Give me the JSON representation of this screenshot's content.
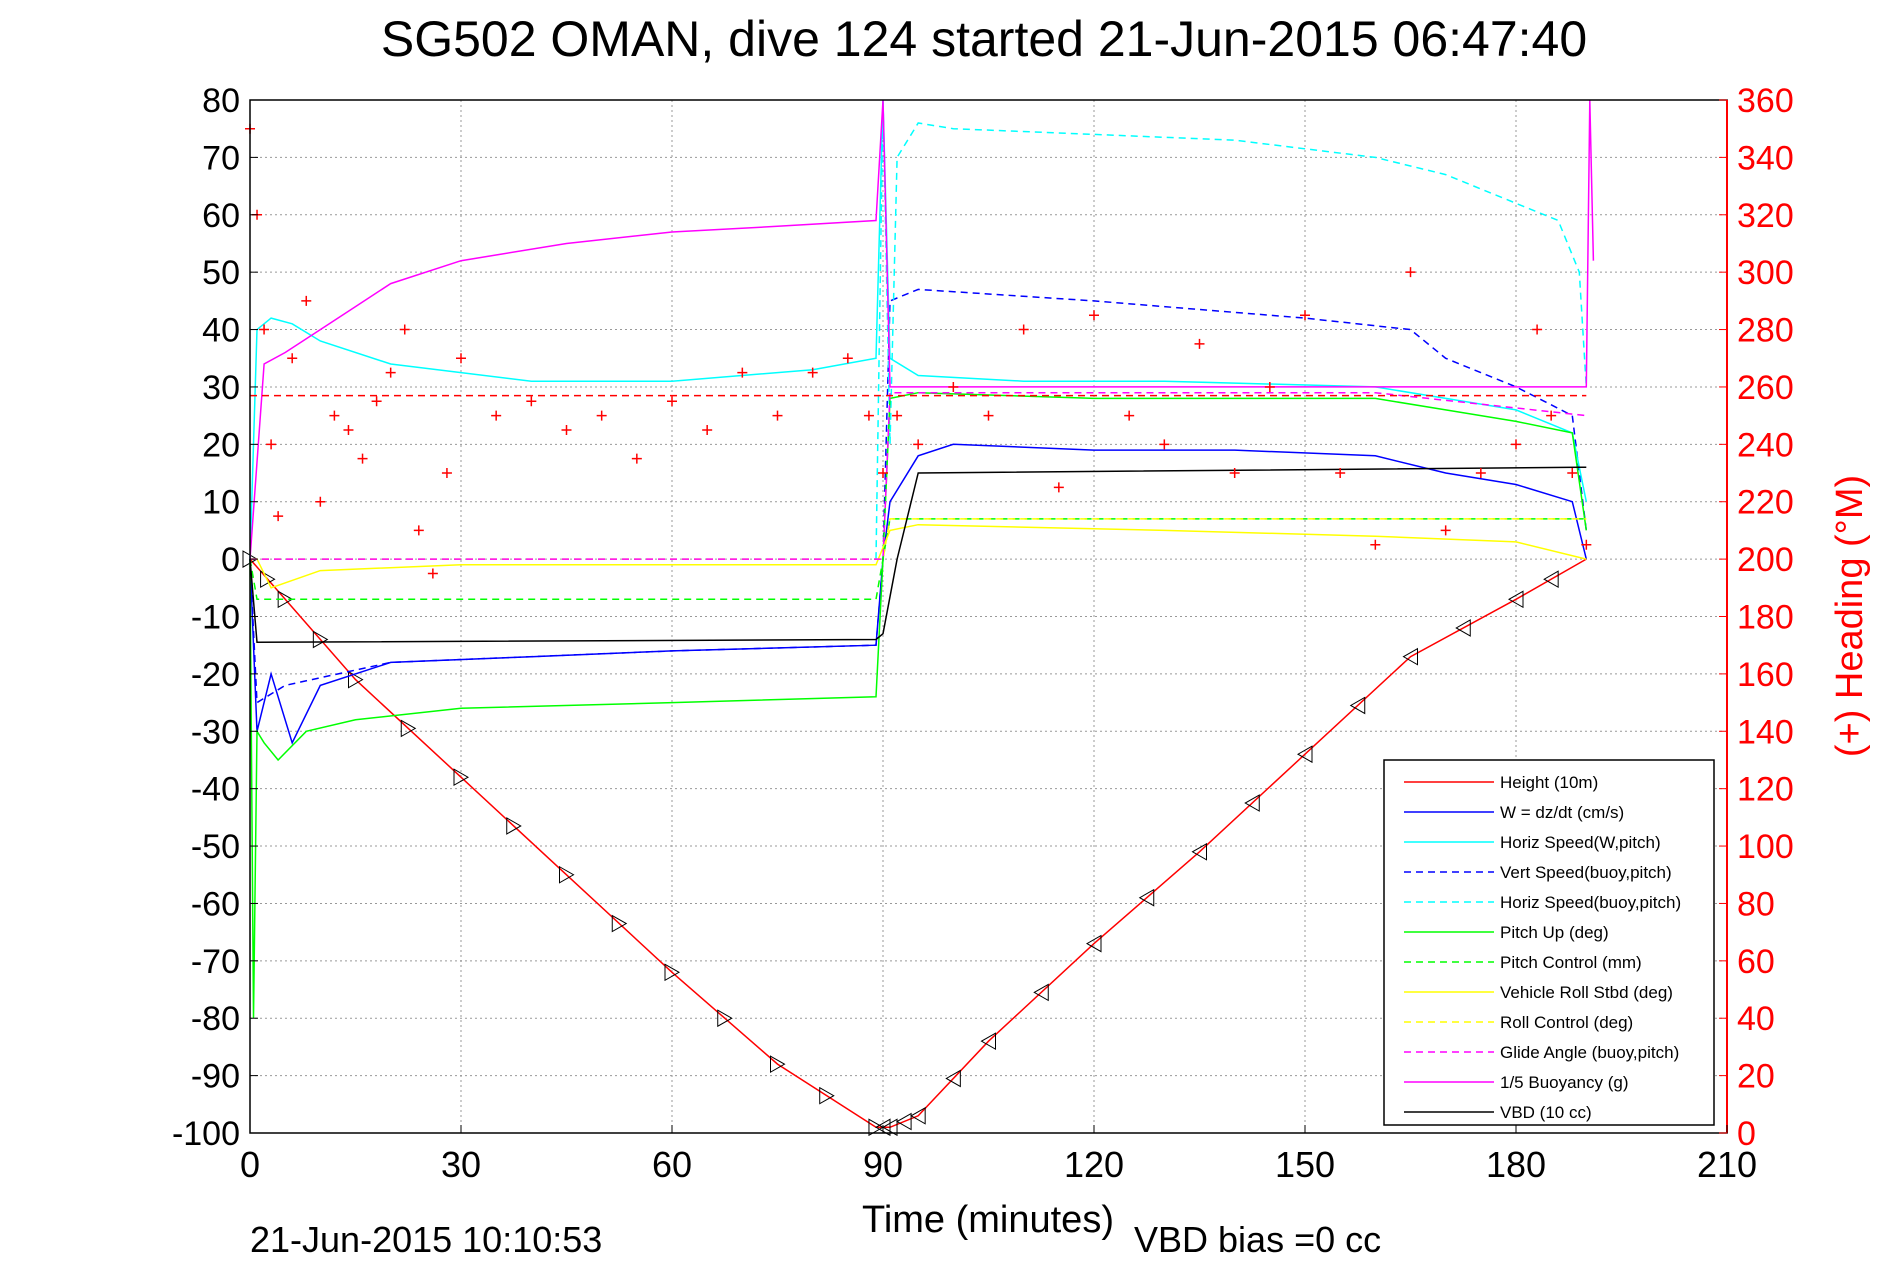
{
  "figure": {
    "title": "SG502 OMAN, dive 124 started 21-Jun-2015 06:47:40",
    "timestamp": "21-Jun-2015 10:10:53",
    "vbd_bias": "VBD bias =0 cc"
  },
  "colors": {
    "height": "#ff0000",
    "w": "#0000ff",
    "horiz": "#00ffff",
    "pitch": "#00ff00",
    "roll": "#ffff00",
    "glide": "#ff00ff",
    "vbd": "#000000",
    "heading": "#ff0000"
  },
  "chart_data": {
    "type": "line",
    "xlabel": "Time (minutes)",
    "ylabel_right": "(+) Heading (°M)",
    "xlim": [
      0,
      210
    ],
    "ylim": [
      -100,
      80
    ],
    "ylim_right": [
      0,
      360
    ],
    "x_ticks": [
      0,
      30,
      60,
      90,
      120,
      150,
      180,
      210
    ],
    "y_ticks": [
      80,
      70,
      60,
      50,
      40,
      30,
      20,
      10,
      0,
      -10,
      -20,
      -30,
      -40,
      -50,
      -60,
      -70,
      -80,
      -90,
      -100
    ],
    "y_ticks_right": [
      360,
      340,
      320,
      300,
      280,
      260,
      240,
      220,
      200,
      180,
      160,
      140,
      120,
      100,
      80,
      60,
      40,
      20,
      0
    ],
    "grid": true,
    "legend_position": "bottom-right",
    "legend": [
      {
        "label": "Height (10m)",
        "color": "#ff0000",
        "style": "solid"
      },
      {
        "label": "W = dz/dt (cm/s)",
        "color": "#0000ff",
        "style": "solid"
      },
      {
        "label": "Horiz Speed(W,pitch)",
        "color": "#00ffff",
        "style": "solid"
      },
      {
        "label": "Vert Speed(buoy,pitch)",
        "color": "#0000ff",
        "style": "dashed"
      },
      {
        "label": "Horiz Speed(buoy,pitch)",
        "color": "#00ffff",
        "style": "dashed"
      },
      {
        "label": "Pitch Up (deg)",
        "color": "#00ff00",
        "style": "solid"
      },
      {
        "label": "Pitch Control (mm)",
        "color": "#00ff00",
        "style": "dashed"
      },
      {
        "label": "Vehicle Roll Stbd (deg)",
        "color": "#ffff00",
        "style": "solid"
      },
      {
        "label": "Roll Control (deg)",
        "color": "#ffff00",
        "style": "dashed"
      },
      {
        "label": "Glide Angle (buoy,pitch)",
        "color": "#ff00ff",
        "style": "dashed"
      },
      {
        "label": "1/5 Buoyancy (g)",
        "color": "#ff00ff",
        "style": "solid"
      },
      {
        "label": "VBD (10 cc)",
        "color": "#000000",
        "style": "solid"
      }
    ],
    "series": [
      {
        "key": "height",
        "color": "#ff0000",
        "style": "solid",
        "x": [
          0,
          5,
          15,
          30,
          45,
          60,
          75,
          89,
          91,
          95,
          105,
          120,
          135,
          150,
          165,
          180,
          190
        ],
        "y": [
          0,
          -7,
          -21,
          -38,
          -55,
          -72,
          -88,
          -99,
          -99,
          -97,
          -84,
          -67,
          -51,
          -34,
          -17,
          -7,
          0
        ]
      },
      {
        "key": "w",
        "color": "#0000ff",
        "style": "solid",
        "x": [
          0,
          1,
          3,
          6,
          10,
          20,
          40,
          60,
          89,
          90,
          91,
          95,
          100,
          120,
          140,
          160,
          170,
          180,
          188,
          190
        ],
        "y": [
          0,
          -30,
          -20,
          -32,
          -22,
          -18,
          -17,
          -16,
          -15,
          0,
          10,
          18,
          20,
          19,
          19,
          18,
          15,
          13,
          10,
          0
        ]
      },
      {
        "key": "vert_buoy",
        "color": "#0000ff",
        "style": "dashed",
        "x": [
          0,
          1,
          5,
          20,
          60,
          89,
          90,
          91,
          95,
          120,
          150,
          165,
          170,
          180,
          188,
          190
        ],
        "y": [
          0,
          -25,
          -22,
          -18,
          -16,
          -15,
          0,
          45,
          47,
          45,
          42,
          40,
          35,
          30,
          25,
          5
        ]
      },
      {
        "key": "horiz_w",
        "color": "#00ffff",
        "style": "solid",
        "x": [
          0,
          1,
          3,
          6,
          10,
          20,
          40,
          60,
          80,
          89,
          90,
          91,
          95,
          110,
          130,
          160,
          170,
          180,
          188,
          190
        ],
        "y": [
          0,
          40,
          42,
          41,
          38,
          34,
          31,
          31,
          33,
          35,
          80,
          35,
          32,
          31,
          31,
          30,
          28,
          26,
          22,
          10
        ]
      },
      {
        "key": "horiz_buoy",
        "color": "#00ffff",
        "style": "dashed",
        "x": [
          89,
          90,
          91,
          92,
          95,
          100,
          120,
          140,
          160,
          170,
          180,
          186,
          189,
          190
        ],
        "y": [
          0,
          80,
          20,
          70,
          76,
          75,
          74,
          73,
          70,
          67,
          62,
          59,
          50,
          30
        ]
      },
      {
        "key": "pitch",
        "color": "#00ff00",
        "style": "solid",
        "x": [
          0,
          0.5,
          1,
          2,
          4,
          8,
          15,
          30,
          60,
          89,
          90,
          91,
          95,
          120,
          160,
          170,
          180,
          188,
          190
        ],
        "y": [
          0,
          -80,
          -30,
          -32,
          -35,
          -30,
          -28,
          -26,
          -25,
          -24,
          0,
          28,
          29,
          28,
          28,
          26,
          24,
          22,
          5
        ]
      },
      {
        "key": "pitch_control",
        "color": "#00ff00",
        "style": "dashed",
        "x": [
          0,
          1,
          89,
          90,
          91,
          190
        ],
        "y": [
          0,
          -7,
          -7,
          0,
          7,
          7
        ]
      },
      {
        "key": "roll",
        "color": "#ffff00",
        "style": "solid",
        "x": [
          0,
          1,
          3,
          10,
          30,
          60,
          89,
          91,
          95,
          130,
          160,
          180,
          190
        ],
        "y": [
          0,
          0,
          -5,
          -2,
          -1,
          -1,
          -1,
          5,
          6,
          5,
          4,
          3,
          0
        ]
      },
      {
        "key": "roll_control",
        "color": "#ffff00",
        "style": "dashed",
        "x": [
          0,
          1,
          60,
          89,
          90,
          91,
          190
        ],
        "y": [
          0,
          0,
          0,
          0,
          0,
          7,
          7
        ]
      },
      {
        "key": "glide",
        "color": "#ff00ff",
        "style": "dashed",
        "x": [
          0,
          89,
          90,
          91,
          120,
          160,
          190
        ],
        "y": [
          0,
          0,
          0,
          29,
          29,
          29,
          25
        ]
      },
      {
        "key": "buoyancy",
        "color": "#ff00ff",
        "style": "solid",
        "x": [
          0,
          2,
          5,
          10,
          15,
          20,
          30,
          45,
          60,
          75,
          89,
          90,
          91,
          190,
          190.5,
          191
        ],
        "y": [
          0,
          34,
          36,
          40,
          44,
          48,
          52,
          55,
          57,
          58,
          59,
          80,
          30,
          30,
          80,
          52
        ]
      },
      {
        "key": "vbd",
        "color": "#000000",
        "style": "solid",
        "x": [
          0,
          1,
          89,
          90,
          92,
          95,
          189,
          190
        ],
        "y": [
          0,
          -14.5,
          -14,
          -13,
          0,
          15,
          16,
          16
        ]
      },
      {
        "key": "heading",
        "color": "#ff0000",
        "style": "plus",
        "axis": "right",
        "x": [
          0,
          1,
          2,
          3,
          4,
          6,
          8,
          10,
          12,
          14,
          16,
          18,
          20,
          22,
          24,
          26,
          28,
          30,
          35,
          40,
          45,
          50,
          55,
          60,
          65,
          70,
          75,
          80,
          85,
          88,
          90,
          92,
          95,
          100,
          105,
          110,
          115,
          120,
          125,
          130,
          135,
          140,
          145,
          150,
          155,
          160,
          165,
          170,
          175,
          180,
          183,
          185,
          188,
          190
        ],
        "y": [
          350,
          320,
          280,
          240,
          215,
          270,
          290,
          220,
          250,
          245,
          235,
          255,
          265,
          280,
          210,
          195,
          230,
          270,
          250,
          255,
          245,
          250,
          235,
          255,
          245,
          265,
          250,
          265,
          270,
          250,
          230,
          250,
          240,
          260,
          250,
          280,
          225,
          285,
          250,
          240,
          275,
          230,
          260,
          285,
          230,
          205,
          300,
          210,
          230,
          240,
          280,
          250,
          230,
          205
        ]
      },
      {
        "key": "heading_ref",
        "color": "#ff0000",
        "style": "dashed",
        "axis": "right",
        "x": [
          0,
          190
        ],
        "y": [
          257,
          257
        ]
      }
    ]
  }
}
